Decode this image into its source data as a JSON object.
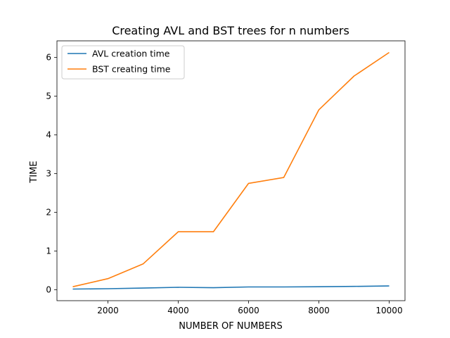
{
  "chart_data": {
    "type": "line",
    "title": "Creating AVL and BST trees for n numbers",
    "xlabel": "NUMBER OF NUMBERS",
    "ylabel": "TIME",
    "xlim": [
      550,
      10450
    ],
    "ylim": [
      -0.28,
      6.43
    ],
    "xticks": [
      2000,
      4000,
      6000,
      8000,
      10000
    ],
    "yticks": [
      0,
      1,
      2,
      3,
      4,
      5,
      6
    ],
    "grid": false,
    "legend_position": "top-left",
    "x": [
      1000,
      2000,
      3000,
      4000,
      5000,
      6000,
      7000,
      8000,
      9000,
      10000
    ],
    "series": [
      {
        "name": "AVL creation time",
        "color": "#1f77b4",
        "values": [
          0.02,
          0.03,
          0.045,
          0.065,
          0.055,
          0.075,
          0.075,
          0.08,
          0.09,
          0.1
        ]
      },
      {
        "name": "BST creating time",
        "color": "#ff7f0e",
        "values": [
          0.08,
          0.29,
          0.67,
          1.5,
          1.5,
          2.75,
          2.9,
          4.65,
          5.52,
          6.13
        ]
      }
    ]
  }
}
